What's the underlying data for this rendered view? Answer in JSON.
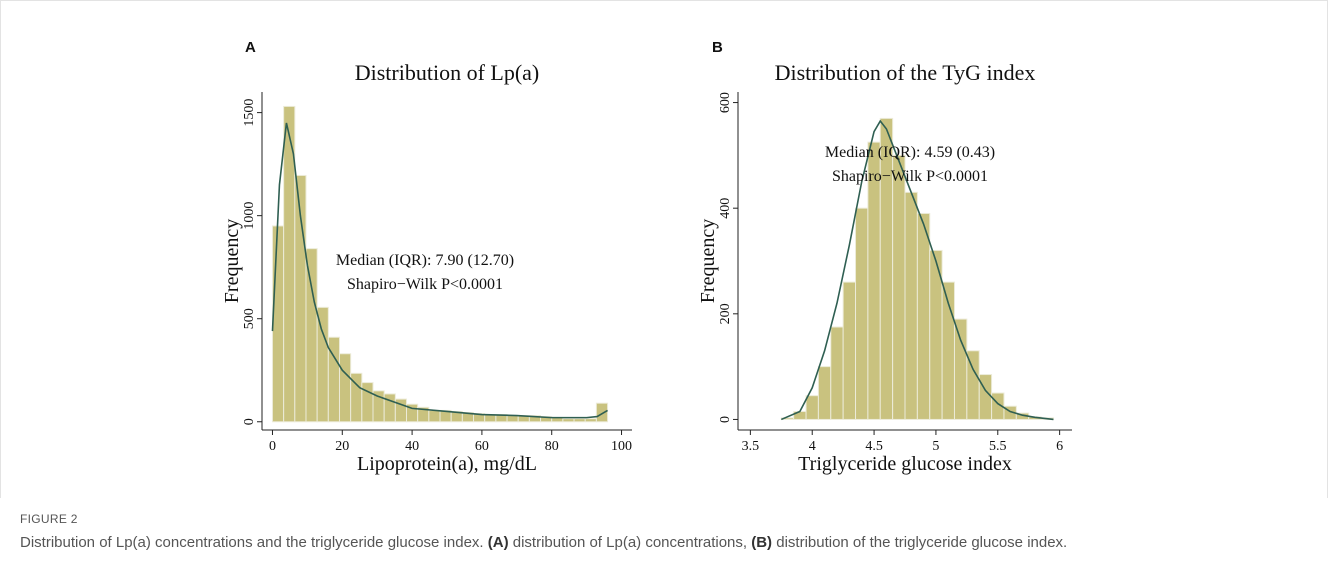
{
  "chart_data": [
    {
      "type": "histogram",
      "panel": "A",
      "title": "Distribution of Lp(a)",
      "xlabel": "Lipoprotein(a), mg/dL",
      "ylabel": "Frequency",
      "bins": [
        0,
        3.2,
        6.4,
        9.6,
        12.8,
        16,
        19.2,
        22.4,
        25.6,
        28.8,
        32,
        35.2,
        38.4,
        41.6,
        44.8,
        48,
        51.2,
        54.4,
        57.6,
        60.8,
        64,
        67.2,
        70.4,
        73.6,
        76.8,
        80,
        83.2,
        86.4,
        89.6,
        92.8,
        96
      ],
      "counts": [
        950,
        1530,
        1195,
        840,
        555,
        410,
        330,
        235,
        190,
        150,
        135,
        110,
        85,
        70,
        55,
        55,
        50,
        45,
        40,
        35,
        35,
        30,
        30,
        30,
        25,
        20,
        15,
        15,
        15,
        90
      ],
      "color": "#c9c27f",
      "edge_color": "#ecebd8",
      "density": {
        "color": "#2f5f52",
        "x": [
          0,
          2,
          4,
          6,
          8,
          10,
          12,
          14,
          16,
          20,
          25,
          30,
          40,
          50,
          60,
          70,
          80,
          90,
          93,
          96
        ],
        "values": [
          440,
          1150,
          1450,
          1300,
          1000,
          760,
          580,
          450,
          360,
          250,
          165,
          125,
          65,
          50,
          35,
          30,
          20,
          20,
          25,
          55
        ]
      },
      "annotations": [
        "Median (IQR): 7.90 (12.70)",
        "Shapiro−Wilk P<0.0001"
      ],
      "xlim": [
        -3,
        103
      ],
      "ylim": [
        -40,
        1600
      ],
      "xticks": [
        0,
        20,
        40,
        60,
        80,
        100
      ],
      "yticks": [
        0,
        500,
        1000,
        1500
      ]
    },
    {
      "type": "histogram",
      "panel": "B",
      "title": "Distribution of the TyG index",
      "xlabel": "Triglyceride glucose index",
      "ylabel": "Frequency",
      "bins": [
        3.75,
        3.85,
        3.95,
        4.05,
        4.15,
        4.25,
        4.35,
        4.45,
        4.55,
        4.65,
        4.75,
        4.85,
        4.95,
        5.05,
        5.15,
        5.25,
        5.35,
        5.45,
        5.55,
        5.65,
        5.75,
        5.85,
        5.95
      ],
      "counts": [
        3,
        15,
        45,
        100,
        175,
        260,
        400,
        525,
        570,
        500,
        430,
        390,
        320,
        260,
        190,
        130,
        85,
        50,
        25,
        12,
        5,
        3
      ],
      "color": "#c9c27f",
      "edge_color": "#ecebd8",
      "density": {
        "color": "#2f5f52",
        "x": [
          3.75,
          3.9,
          4.0,
          4.1,
          4.2,
          4.3,
          4.4,
          4.5,
          4.55,
          4.6,
          4.7,
          4.8,
          4.9,
          5.0,
          5.1,
          5.2,
          5.3,
          5.4,
          5.5,
          5.6,
          5.7,
          5.8,
          5.95
        ],
        "values": [
          0,
          15,
          60,
          130,
          220,
          330,
          450,
          545,
          565,
          550,
          490,
          430,
          370,
          300,
          220,
          150,
          95,
          55,
          30,
          15,
          8,
          4,
          0
        ]
      },
      "annotations": [
        "Median (IQR): 4.59 (0.43)",
        "Shapiro−Wilk P<0.0001"
      ],
      "xlim": [
        3.4,
        6.1
      ],
      "ylim": [
        -20,
        620
      ],
      "xticks": [
        3.5,
        4,
        4.5,
        5,
        5.5,
        6
      ],
      "yticks": [
        0,
        200,
        400,
        600
      ]
    }
  ],
  "figure": {
    "label": "FIGURE 2",
    "caption": [
      "Distribution of Lp(a) concentrations and the triglyceride glucose index. ",
      "(A)",
      " distribution of Lp(a) concentrations, ",
      "(B)",
      " distribution of the triglyceride glucose index."
    ]
  }
}
